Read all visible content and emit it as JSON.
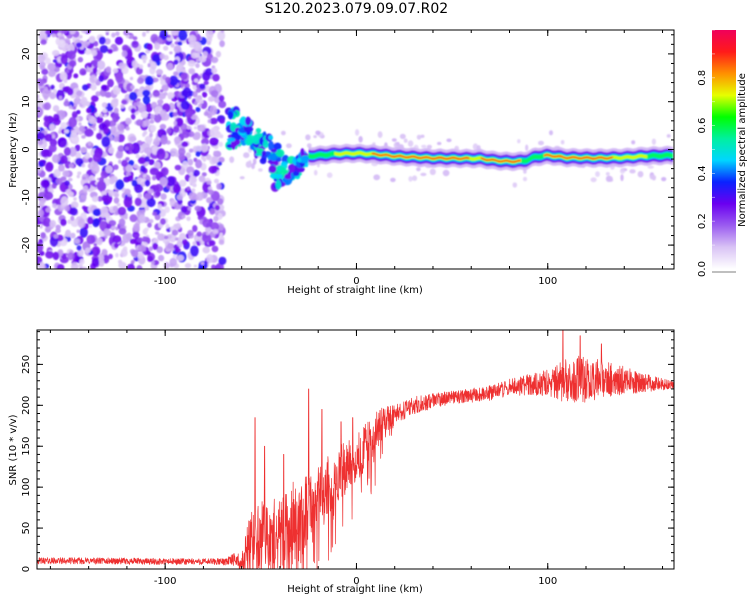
{
  "title": "S120.2023.079.09.07.R02",
  "chart_data": [
    {
      "type": "heatmap",
      "name": "spectrogram",
      "title": "S120.2023.079.09.07.R02",
      "xlabel": "Height of straight line (km)",
      "ylabel": "Frequency (Hz)",
      "xlim": [
        -167,
        166
      ],
      "ylim": [
        -25,
        25
      ],
      "xticks": [
        -100,
        0,
        100
      ],
      "yticks": [
        20,
        10,
        0,
        -10,
        -20
      ],
      "colorbar": {
        "label": "Normalized spectral amplitude",
        "range": [
          0,
          1
        ],
        "ticks": [
          0.0,
          0.2,
          0.4,
          0.6,
          0.8
        ]
      },
      "colormap": [
        "#ffffff",
        "#d9c3f5",
        "#9b5cf0",
        "#6a00f0",
        "#0a22ff",
        "#00d6ff",
        "#00f0a0",
        "#00ff00",
        "#e6ff00",
        "#ff9000",
        "#ff1a1a",
        "#f0005a"
      ],
      "features": {
        "noise_region_x": [
          -167,
          -70
        ],
        "transition_region_x": [
          -70,
          -25
        ],
        "line_region_x": [
          -25,
          166
        ],
        "line_freq_hz": [
          [
            -25,
            -1.4
          ],
          [
            -10,
            -0.9
          ],
          [
            0,
            -0.8
          ],
          [
            10,
            -1.0
          ],
          [
            20,
            -1.4
          ],
          [
            40,
            -1.8
          ],
          [
            65,
            -1.9
          ],
          [
            72,
            -2.3
          ],
          [
            80,
            -2.5
          ],
          [
            88,
            -2.4
          ],
          [
            93,
            -1.6
          ],
          [
            100,
            -1.2
          ],
          [
            110,
            -1.7
          ],
          [
            125,
            -1.8
          ],
          [
            140,
            -1.7
          ],
          [
            150,
            -1.4
          ],
          [
            166,
            -1.2
          ]
        ],
        "transition_clusters": [
          [
            -64,
            6,
            3
          ],
          [
            -60,
            3,
            3
          ],
          [
            -55,
            2,
            4
          ],
          [
            -50,
            1,
            3
          ],
          [
            -45,
            0,
            4
          ],
          [
            -40,
            -3,
            4
          ],
          [
            -36,
            -5,
            3
          ],
          [
            -32,
            -4,
            3
          ],
          [
            -28,
            -2,
            2
          ],
          [
            -65,
            2,
            2
          ],
          [
            -58,
            5,
            2
          ],
          [
            -42,
            -6,
            3
          ]
        ]
      }
    },
    {
      "type": "line",
      "name": "snr",
      "xlabel": "Height of straight line (km)",
      "ylabel": "SNR (10 * v/v)",
      "xlim": [
        -167,
        166
      ],
      "ylim": [
        0,
        292
      ],
      "xticks": [
        -100,
        0,
        100
      ],
      "yticks": [
        0,
        50,
        100,
        150,
        200,
        250
      ],
      "color": "#ee3030",
      "envelope": [
        [
          -167,
          10
        ],
        [
          -140,
          10
        ],
        [
          -100,
          9
        ],
        [
          -70,
          9
        ],
        [
          -60,
          13
        ],
        [
          -55,
          30
        ],
        [
          -50,
          45
        ],
        [
          -45,
          40
        ],
        [
          -40,
          45
        ],
        [
          -35,
          55
        ],
        [
          -30,
          60
        ],
        [
          -25,
          70
        ],
        [
          -20,
          90
        ],
        [
          -15,
          105
        ],
        [
          -10,
          115
        ],
        [
          -5,
          125
        ],
        [
          0,
          135
        ],
        [
          5,
          150
        ],
        [
          10,
          165
        ],
        [
          15,
          180
        ],
        [
          20,
          188
        ],
        [
          30,
          200
        ],
        [
          40,
          205
        ],
        [
          50,
          210
        ],
        [
          60,
          212
        ],
        [
          70,
          215
        ],
        [
          80,
          222
        ],
        [
          90,
          225
        ],
        [
          100,
          228
        ],
        [
          110,
          230
        ],
        [
          120,
          232
        ],
        [
          130,
          232
        ],
        [
          140,
          230
        ],
        [
          150,
          228
        ],
        [
          160,
          226
        ],
        [
          166,
          225
        ]
      ],
      "noise_amplitude": [
        [
          -167,
          4
        ],
        [
          -70,
          4
        ],
        [
          -60,
          10
        ],
        [
          -55,
          45
        ],
        [
          -50,
          40
        ],
        [
          -40,
          45
        ],
        [
          -35,
          55
        ],
        [
          -30,
          50
        ],
        [
          -20,
          40
        ],
        [
          -10,
          35
        ],
        [
          0,
          30
        ],
        [
          10,
          28
        ],
        [
          20,
          12
        ],
        [
          50,
          8
        ],
        [
          80,
          10
        ],
        [
          100,
          16
        ],
        [
          110,
          28
        ],
        [
          120,
          30
        ],
        [
          130,
          22
        ],
        [
          140,
          18
        ],
        [
          150,
          12
        ],
        [
          166,
          5
        ]
      ],
      "spikes": [
        [
          -53,
          185
        ],
        [
          -48,
          150
        ],
        [
          -38,
          140
        ],
        [
          -25,
          220
        ],
        [
          -18,
          195
        ],
        [
          -8,
          180
        ],
        [
          -2,
          185
        ],
        [
          5,
          170
        ],
        [
          108,
          292
        ],
        [
          117,
          285
        ],
        [
          128,
          275
        ]
      ]
    }
  ]
}
